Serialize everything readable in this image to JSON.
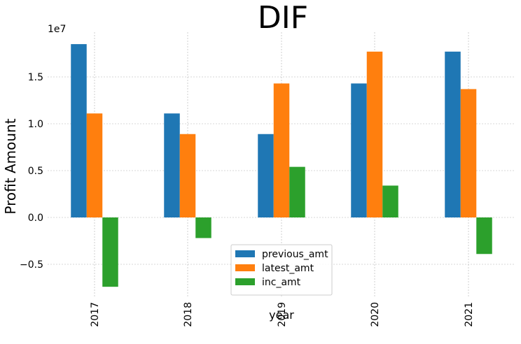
{
  "chart_data": {
    "type": "bar",
    "title": "DIF",
    "xlabel": "year",
    "ylabel": "Profit Amount",
    "y_offset_label": "1e7",
    "categories": [
      "2017",
      "2018",
      "2019",
      "2020",
      "2021"
    ],
    "y_ticks": [
      -0.5,
      0.0,
      0.5,
      1.0,
      1.5
    ],
    "y_tick_labels": [
      "−0.5",
      "0.0",
      "0.5",
      "1.0",
      "1.5"
    ],
    "ylim": [
      -0.85,
      1.95
    ],
    "grid": true,
    "legend_position": "lower-center",
    "series": [
      {
        "name": "previous_amt",
        "color": "#1f77b4",
        "values": [
          1.85,
          1.11,
          0.89,
          1.43,
          1.77
        ]
      },
      {
        "name": "latest_amt",
        "color": "#ff7f0e",
        "values": [
          1.11,
          0.89,
          1.43,
          1.77,
          1.37
        ]
      },
      {
        "name": "inc_amt",
        "color": "#2ca02c",
        "values": [
          -0.74,
          -0.22,
          0.54,
          0.34,
          -0.39
        ]
      }
    ]
  }
}
